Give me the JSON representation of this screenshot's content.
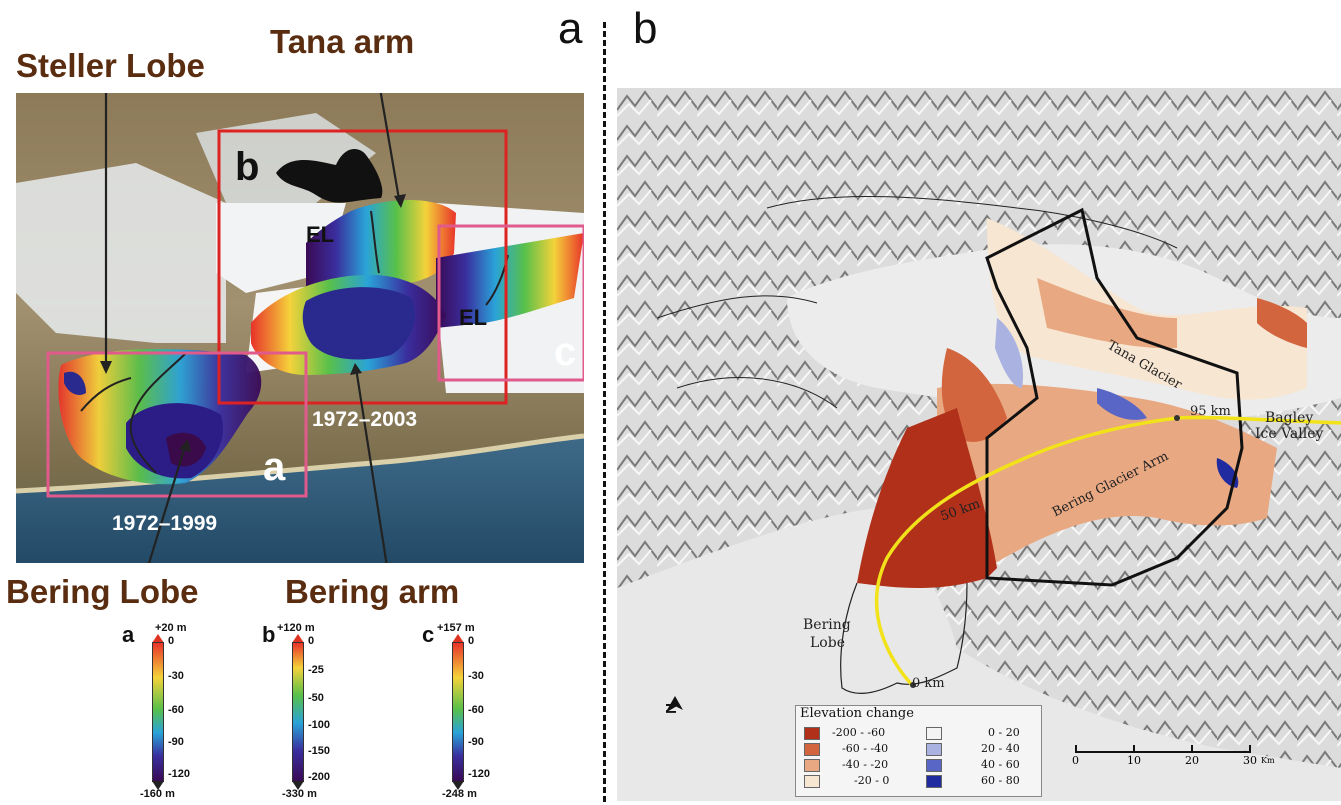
{
  "panel_a": {
    "letter": "a",
    "callouts": {
      "steller_lobe": "Steller Lobe",
      "tana_arm": "Tana arm",
      "bering_lobe": "Bering Lobe",
      "bering_arm": "Bering arm"
    },
    "map_labels": {
      "box_b": "b",
      "box_c": "c",
      "box_a": "a",
      "el_upper": "EL",
      "el_lower": "EL",
      "period_b": "1972–2003",
      "period_a": "1972–1999"
    },
    "colorbars": [
      {
        "letter": "a",
        "top": "+20 m",
        "ticks": [
          "0",
          "-30",
          "-60",
          "-90",
          "-120"
        ],
        "bottom": "-160 m"
      },
      {
        "letter": "b",
        "top": "+120 m",
        "ticks": [
          "0",
          "-25",
          "-50",
          "-100",
          "-150",
          "-200"
        ],
        "bottom": "-330 m"
      },
      {
        "letter": "c",
        "top": "+157 m",
        "ticks": [
          "0",
          "-30",
          "-60",
          "-90",
          "-120"
        ],
        "bottom": "-248 m"
      }
    ]
  },
  "panel_b": {
    "letter": "b",
    "labels": {
      "tana_glacier": "Tana Glacier",
      "bering_glacier_arm": "Bering Glacier Arm",
      "bagley_1": "Bagley",
      "bagley_2": "Ice Valley",
      "bering_lobe_1": "Bering",
      "bering_lobe_2": "Lobe",
      "km95": "95 km",
      "km50": "50 km",
      "km0": "0 km",
      "north": "N"
    },
    "legend": {
      "title": "Elevation change",
      "items": [
        {
          "label": "-200 - -60",
          "color": "#b0301a"
        },
        {
          "label": "-60 - -40",
          "color": "#d2643e"
        },
        {
          "label": "-40 - -20",
          "color": "#e8a882"
        },
        {
          "label": "-20 - 0",
          "color": "#f7e6d2"
        },
        {
          "label": "0 - 20",
          "color": "#f4f4f4"
        },
        {
          "label": "20 - 40",
          "color": "#a9b2e0"
        },
        {
          "label": "40 - 60",
          "color": "#5a66c6"
        },
        {
          "label": "60 - 80",
          "color": "#1f2b9e"
        }
      ]
    },
    "scale": {
      "ticks": [
        "0",
        "10",
        "20",
        "30"
      ],
      "unit": "Km"
    }
  }
}
